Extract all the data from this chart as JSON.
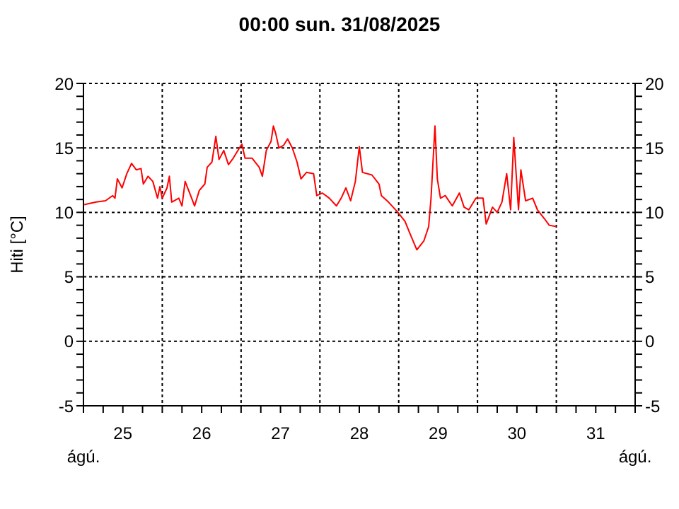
{
  "chart_data": {
    "type": "line",
    "title": "00:00   sun.  31/08/2025",
    "ylabel": "Hiti [°C]",
    "annotations": [
      "ágú.",
      "ágú."
    ],
    "xlim": [
      25,
      32
    ],
    "xticks": [
      {
        "value": 25,
        "label": null
      },
      {
        "value": 25.25,
        "label": null
      },
      {
        "value": 25.5,
        "label": "25"
      },
      {
        "value": 25.75,
        "label": null
      },
      {
        "value": 26,
        "label": null
      },
      {
        "value": 26.25,
        "label": null
      },
      {
        "value": 26.5,
        "label": "26"
      },
      {
        "value": 26.75,
        "label": null
      },
      {
        "value": 27,
        "label": null
      },
      {
        "value": 27.25,
        "label": null
      },
      {
        "value": 27.5,
        "label": "27"
      },
      {
        "value": 27.75,
        "label": null
      },
      {
        "value": 28,
        "label": null
      },
      {
        "value": 28.25,
        "label": null
      },
      {
        "value": 28.5,
        "label": "28"
      },
      {
        "value": 28.75,
        "label": null
      },
      {
        "value": 29,
        "label": null
      },
      {
        "value": 29.25,
        "label": null
      },
      {
        "value": 29.5,
        "label": "29"
      },
      {
        "value": 29.75,
        "label": null
      },
      {
        "value": 30,
        "label": null
      },
      {
        "value": 30.25,
        "label": null
      },
      {
        "value": 30.5,
        "label": "30"
      },
      {
        "value": 30.75,
        "label": null
      },
      {
        "value": 31,
        "label": null
      },
      {
        "value": 31.25,
        "label": null
      },
      {
        "value": 31.5,
        "label": "31"
      },
      {
        "value": 31.75,
        "label": null
      },
      {
        "value": 32,
        "label": null
      }
    ],
    "ylim": [
      -5,
      20
    ],
    "yticks": [
      -5,
      {
        "value": -4,
        "label": null
      },
      {
        "value": -3,
        "label": null
      },
      {
        "value": -2,
        "label": null
      },
      {
        "value": -1,
        "label": null
      },
      0,
      {
        "value": 1,
        "label": null
      },
      {
        "value": 2,
        "label": null
      },
      {
        "value": 3,
        "label": null
      },
      {
        "value": 4,
        "label": null
      },
      5,
      {
        "value": 6,
        "label": null
      },
      {
        "value": 7,
        "label": null
      },
      {
        "value": 8,
        "label": null
      },
      {
        "value": 9,
        "label": null
      },
      10,
      {
        "value": 11,
        "label": null
      },
      {
        "value": 12,
        "label": null
      },
      {
        "value": 13,
        "label": null
      },
      {
        "value": 14,
        "label": null
      },
      15,
      {
        "value": 16,
        "label": null
      },
      {
        "value": 17,
        "label": null
      },
      {
        "value": 18,
        "label": null
      },
      {
        "value": 19,
        "label": null
      },
      20
    ],
    "y2lim": [
      -5,
      20
    ],
    "y2ticks": [
      -5,
      {
        "value": -4,
        "label": null
      },
      {
        "value": -3,
        "label": null
      },
      {
        "value": -2,
        "label": null
      },
      {
        "value": -1,
        "label": null
      },
      0,
      {
        "value": 1,
        "label": null
      },
      {
        "value": 2,
        "label": null
      },
      {
        "value": 3,
        "label": null
      },
      {
        "value": 4,
        "label": null
      },
      5,
      {
        "value": 6,
        "label": null
      },
      {
        "value": 7,
        "label": null
      },
      {
        "value": 8,
        "label": null
      },
      {
        "value": 9,
        "label": null
      },
      10,
      {
        "value": 11,
        "label": null
      },
      {
        "value": 12,
        "label": null
      },
      {
        "value": 13,
        "label": null
      },
      {
        "value": 14,
        "label": null
      },
      15,
      {
        "value": 16,
        "label": null
      },
      {
        "value": 17,
        "label": null
      },
      {
        "value": 18,
        "label": null
      },
      {
        "value": 19,
        "label": null
      },
      20
    ],
    "grid": true,
    "marker": "none",
    "line_style": "solid",
    "series": [
      {
        "color": "#ff0000",
        "x": [
          25.01,
          25.16,
          25.28,
          25.37,
          25.4,
          25.43,
          25.49,
          25.55,
          25.61,
          25.67,
          25.73,
          25.76,
          25.82,
          25.88,
          25.94,
          25.97,
          26.0,
          26.06,
          26.09,
          26.12,
          26.21,
          26.25,
          26.29,
          26.36,
          26.41,
          26.47,
          26.54,
          26.57,
          26.63,
          26.68,
          26.72,
          26.78,
          26.84,
          26.9,
          26.96,
          27.01,
          27.05,
          27.14,
          27.23,
          27.27,
          27.32,
          27.38,
          27.41,
          27.44,
          27.48,
          27.54,
          27.59,
          27.65,
          27.71,
          27.76,
          27.83,
          27.92,
          27.96,
          28.03,
          28.12,
          28.21,
          28.27,
          28.33,
          28.39,
          28.45,
          28.5,
          28.54,
          28.66,
          28.75,
          28.78,
          28.87,
          28.99,
          29.08,
          29.14,
          29.23,
          29.32,
          29.38,
          29.41,
          29.46,
          29.49,
          29.53,
          29.59,
          29.68,
          29.77,
          29.83,
          29.89,
          29.98,
          30.07,
          30.11,
          30.19,
          30.25,
          30.31,
          30.37,
          30.42,
          30.46,
          30.52,
          30.55,
          30.61,
          30.7,
          30.76,
          30.85,
          30.91,
          31.0
        ],
        "values": [
          10.6,
          10.8,
          10.9,
          11.3,
          11.1,
          12.6,
          11.9,
          13.0,
          13.8,
          13.3,
          13.4,
          12.2,
          12.8,
          12.4,
          11.1,
          12.0,
          11.1,
          11.9,
          12.8,
          10.8,
          11.1,
          10.5,
          12.4,
          11.3,
          10.5,
          11.7,
          12.2,
          13.5,
          13.9,
          15.9,
          14.1,
          14.8,
          13.7,
          14.2,
          14.8,
          15.3,
          14.2,
          14.2,
          13.5,
          12.8,
          14.8,
          15.5,
          16.7,
          16.1,
          15.0,
          15.2,
          15.7,
          15.0,
          13.9,
          12.6,
          13.1,
          13.0,
          11.3,
          11.5,
          11.1,
          10.5,
          11.1,
          11.9,
          10.9,
          12.4,
          15.1,
          13.1,
          12.9,
          12.2,
          11.3,
          10.8,
          10.0,
          9.3,
          8.4,
          7.1,
          7.8,
          8.9,
          11.1,
          16.7,
          12.6,
          11.1,
          11.3,
          10.5,
          11.5,
          10.4,
          10.2,
          11.1,
          11.1,
          9.1,
          10.4,
          10.0,
          10.8,
          13.0,
          10.2,
          15.8,
          10.2,
          13.3,
          10.9,
          11.1,
          10.2,
          9.5,
          9.0,
          8.9
        ]
      }
    ]
  }
}
